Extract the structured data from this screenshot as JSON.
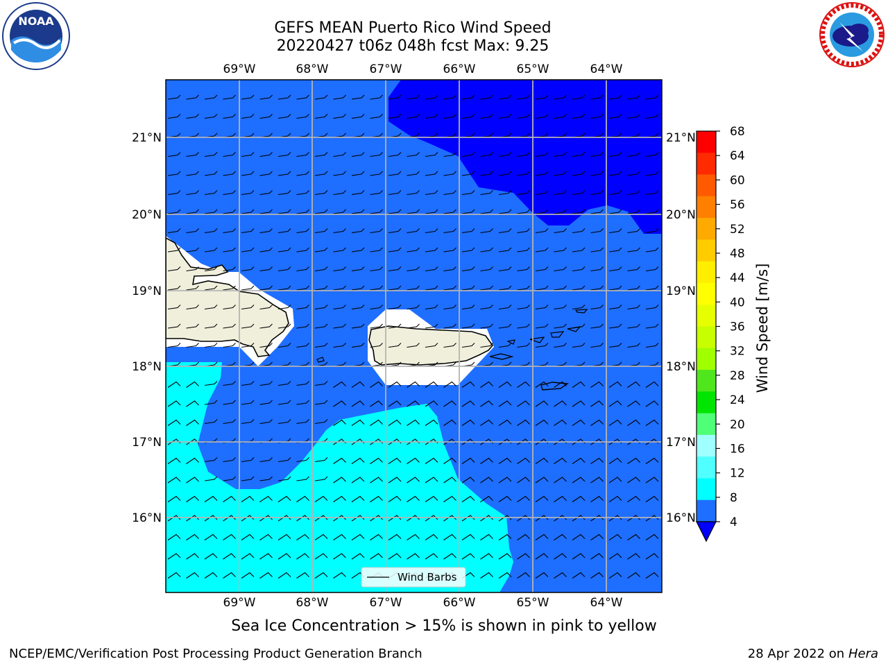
{
  "title_line1": "GEFS MEAN Puerto Rico Wind Speed",
  "title_line2": "20220427 t06z 048h fcst   Max: 9.25",
  "caption": "Sea Ice Concentration > 15% is shown in pink to yellow",
  "footer_left": "NCEP/EMC/Verification Post Processing Product Generation Branch",
  "footer_right_date": "28 Apr 2022 on ",
  "footer_right_host": "Hera",
  "logos": {
    "left": "noaa-logo",
    "right": "nws-logo"
  },
  "map": {
    "lon_labels": [
      "69°W",
      "68°W",
      "67°W",
      "66°W",
      "65°W",
      "64°W"
    ],
    "lat_labels": [
      "21°N",
      "20°N",
      "19°N",
      "18°N",
      "17°N",
      "16°N"
    ],
    "legend_label": "Wind Barbs",
    "land_color": "#efefdc",
    "ocean_colors": {
      "4-8": "#1e6eff",
      "8-12": "#00ffff",
      "below-4": "#0000ff"
    }
  },
  "colorbar": {
    "title": "Wind Speed [m/s]",
    "ticks": [
      "68",
      "64",
      "60",
      "56",
      "52",
      "48",
      "44",
      "40",
      "36",
      "32",
      "28",
      "24",
      "20",
      "16",
      "12",
      "8",
      "4"
    ],
    "colors": [
      "#ff0000",
      "#ff2a00",
      "#ff5a00",
      "#ff8000",
      "#ffaa00",
      "#ffcc00",
      "#ffee00",
      "#ffff00",
      "#e6ff00",
      "#c8ff00",
      "#a0ff00",
      "#50e61e",
      "#00e600",
      "#50ff78",
      "#a0ffff",
      "#50ffff",
      "#00ffff",
      "#1e6eff"
    ],
    "extend_color": "#0000ff"
  }
}
